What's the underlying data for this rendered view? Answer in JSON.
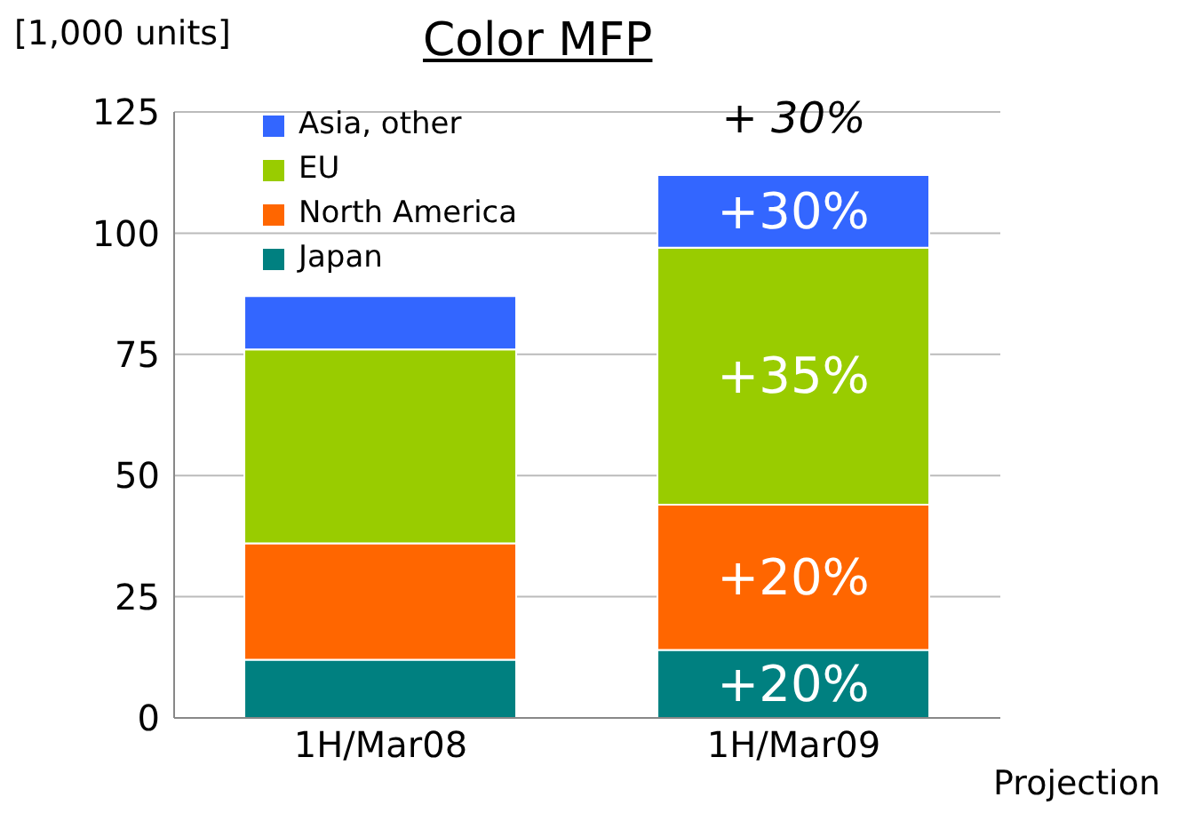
{
  "chart_data": {
    "type": "bar",
    "title": "Color MFP",
    "ylabel": "[1,000 units]",
    "categories": [
      "1H/Mar08",
      "1H/Mar09"
    ],
    "stacked": true,
    "series": [
      {
        "name": "Japan",
        "color": "#008080",
        "values": [
          12,
          14
        ]
      },
      {
        "name": "North America",
        "color": "#ff6600",
        "values": [
          24,
          30
        ]
      },
      {
        "name": "EU",
        "color": "#99cc00",
        "values": [
          40,
          53
        ]
      },
      {
        "name": "Asia, other",
        "color": "#3366ff",
        "values": [
          11,
          15
        ]
      }
    ],
    "ylim": [
      0,
      125
    ],
    "yticks": [
      0,
      25,
      50,
      75,
      100,
      125
    ],
    "grid": "y",
    "legend": "top left",
    "annotations": [
      "+20%",
      "+20%",
      "+35%",
      "+30%",
      {
        "text": "+ 30%",
        "x": "1H/Mar09",
        "y": 112
      },
      "Projection"
    ]
  }
}
